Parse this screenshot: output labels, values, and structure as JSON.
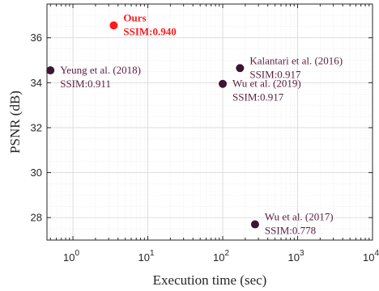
{
  "colors": {
    "marker": "#3d1530",
    "label": "#5a1f3f",
    "highlight": "#ff1a1a",
    "grid": "#d9d9d9",
    "axis": "#262626"
  },
  "chart_data": {
    "type": "scatter",
    "title": "",
    "xlabel": "Execution time (sec)",
    "ylabel": "PSNR (dB)",
    "xscale": "log",
    "xlim": [
      0.45,
      10000
    ],
    "ylim": [
      27,
      37.5
    ],
    "xticks": [
      1,
      10,
      100,
      1000,
      10000
    ],
    "xtick_labels": [
      {
        "base": "10",
        "exp": "0"
      },
      {
        "base": "10",
        "exp": "1"
      },
      {
        "base": "10",
        "exp": "2"
      },
      {
        "base": "10",
        "exp": "3"
      },
      {
        "base": "10",
        "exp": "4"
      }
    ],
    "yticks": [
      28,
      30,
      32,
      34,
      36
    ],
    "ytick_labels": [
      "28",
      "30",
      "32",
      "34",
      "36"
    ],
    "grid": true,
    "minor_grid": true,
    "points": [
      {
        "name": "Ours",
        "ssim": "SSIM:0.940",
        "x": 3.5,
        "y": 36.55,
        "highlight": true,
        "label_pos": "right-top"
      },
      {
        "name": "Yeung et al. (2018)",
        "ssim": "SSIM:0.911",
        "x": 0.5,
        "y": 34.55,
        "highlight": false,
        "label_pos": "right"
      },
      {
        "name": "Kalantari et al. (2016)",
        "ssim": "SSIM:0.917",
        "x": 170,
        "y": 34.65,
        "highlight": false,
        "label_pos": "right-top"
      },
      {
        "name": "Wu et al. (2019)",
        "ssim": "SSIM:0.917",
        "x": 100,
        "y": 33.95,
        "highlight": false,
        "label_pos": "right"
      },
      {
        "name": "Wu et al. (2017)",
        "ssim": "SSIM:0.778",
        "x": 270,
        "y": 27.7,
        "highlight": false,
        "label_pos": "right-top"
      }
    ]
  }
}
